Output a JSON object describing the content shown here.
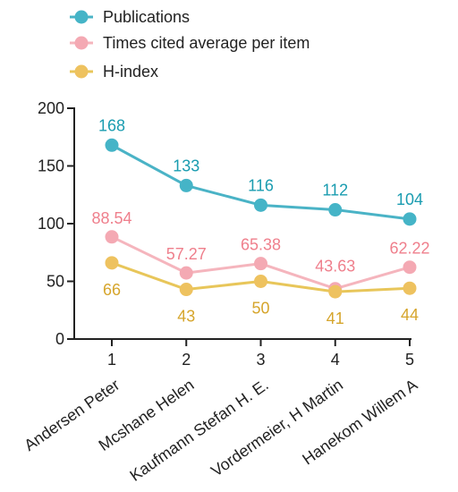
{
  "chart_data": {
    "type": "line",
    "x": [
      1,
      2,
      3,
      4,
      5
    ],
    "x_tick_labels": [
      "1",
      "2",
      "3",
      "4",
      "5"
    ],
    "categories": [
      "Andersen Peter",
      "Mcshane Helen",
      "Kaufmann Stefan H. E.",
      "Vordermeier, H Martin",
      "Hanekom Willem A"
    ],
    "ylim": [
      0,
      200
    ],
    "y_ticks": [
      0,
      50,
      100,
      150,
      200
    ],
    "xlabel": "",
    "ylabel": "",
    "grid": false,
    "legend_position": "top-left",
    "series": [
      {
        "name": "Publications",
        "values": [
          168,
          133,
          116,
          112,
          104
        ],
        "labels": [
          "168",
          "133",
          "116",
          "112",
          "104"
        ],
        "line_color": "#4ab3c6",
        "marker_color": "#45b4c7",
        "label_color": "#1a9cb0"
      },
      {
        "name": "Times cited average per item",
        "values": [
          88.54,
          57.27,
          65.38,
          43.63,
          62.22
        ],
        "labels": [
          "88.54",
          "57.27",
          "65.38",
          "43.63",
          "62.22"
        ],
        "line_color": "#f5b5bd",
        "marker_color": "#f4a9b3",
        "label_color": "#ef7f8c"
      },
      {
        "name": "H-index",
        "values": [
          66,
          43,
          50,
          41,
          44
        ],
        "labels": [
          "66",
          "43",
          "50",
          "41",
          "44"
        ],
        "line_color": "#e8c65a",
        "marker_color": "#eec25f",
        "label_color": "#d6a52c"
      }
    ]
  }
}
